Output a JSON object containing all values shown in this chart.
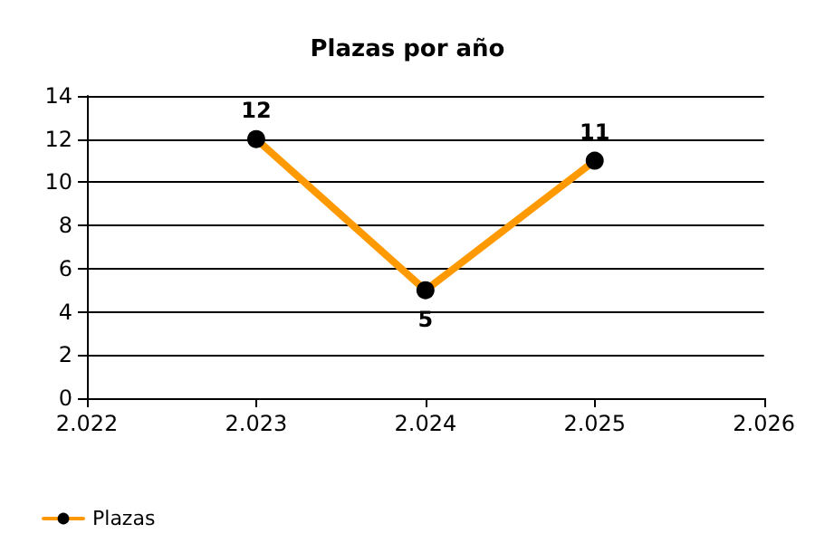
{
  "chart_data": {
    "type": "line",
    "title": "Plazas por año",
    "x": [
      2023,
      2024,
      2025
    ],
    "series": [
      {
        "name": "Plazas",
        "color": "#ff9900",
        "values": [
          12,
          5,
          11
        ]
      }
    ],
    "xlim": [
      2022,
      2026
    ],
    "xticks": [
      {
        "value": 2022,
        "label": "2.022"
      },
      {
        "value": 2023,
        "label": "2.023"
      },
      {
        "value": 2024,
        "label": "2.024"
      },
      {
        "value": 2025,
        "label": "2.025"
      },
      {
        "value": 2026,
        "label": "2.026"
      }
    ],
    "ylim": [
      0,
      14
    ],
    "yticks": [
      0,
      2,
      4,
      6,
      8,
      10,
      12,
      14
    ],
    "grid": "y",
    "legend": "bottom left",
    "marker": "circle",
    "line_style": "solid",
    "data_labels": true
  }
}
